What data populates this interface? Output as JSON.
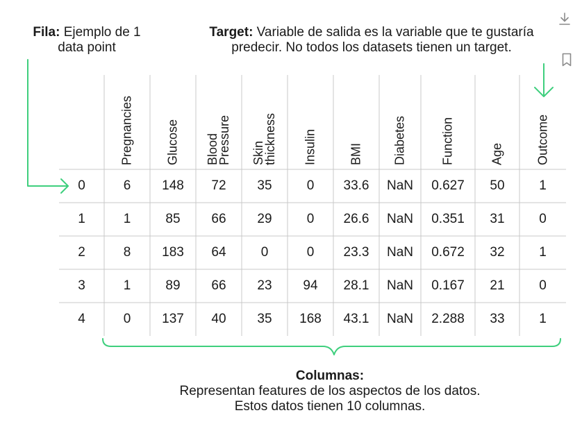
{
  "annotations": {
    "fila": {
      "label": "Fila:",
      "text_line1": " Ejemplo de 1",
      "text_line2": "data point"
    },
    "target": {
      "label": "Target:",
      "text_line1": " Variable de salida es la variable que te gustaría",
      "text_line2": "predecir. No todos los datasets tienen un target."
    },
    "columnas": {
      "title": "Columnas:",
      "line1": "Representan features de los aspectos de los datos.",
      "line2": "Estos datos tienen 10 columnas."
    }
  },
  "table": {
    "headers": [
      "Pregnancies",
      "Glucose",
      "Blood\nPressure",
      "Skin\nthickness",
      "Insulin",
      "BMI",
      "Diabetes",
      "Function",
      "Age",
      "Outcome"
    ],
    "rows": [
      {
        "index": "0",
        "cells": [
          "6",
          "148",
          "72",
          "35",
          "0",
          "33.6",
          "NaN",
          "0.627",
          "50",
          "1"
        ]
      },
      {
        "index": "1",
        "cells": [
          "1",
          "85",
          "66",
          "29",
          "0",
          "26.6",
          "NaN",
          "0.351",
          "31",
          "0"
        ]
      },
      {
        "index": "2",
        "cells": [
          "8",
          "183",
          "64",
          "0",
          "0",
          "23.3",
          "NaN",
          "0.672",
          "32",
          "1"
        ]
      },
      {
        "index": "3",
        "cells": [
          "1",
          "89",
          "66",
          "23",
          "94",
          "28.1",
          "NaN",
          "0.167",
          "21",
          "0"
        ]
      },
      {
        "index": "4",
        "cells": [
          "0",
          "137",
          "40",
          "35",
          "168",
          "43.1",
          "NaN",
          "2.288",
          "33",
          "1"
        ]
      }
    ]
  },
  "colors": {
    "accent": "#3ecf7d",
    "grid": "#c8c8c8",
    "text": "#1a1a1a",
    "icon": "#8a8a8a"
  },
  "icons": {
    "download": "download-icon",
    "bookmark": "bookmark-icon"
  }
}
